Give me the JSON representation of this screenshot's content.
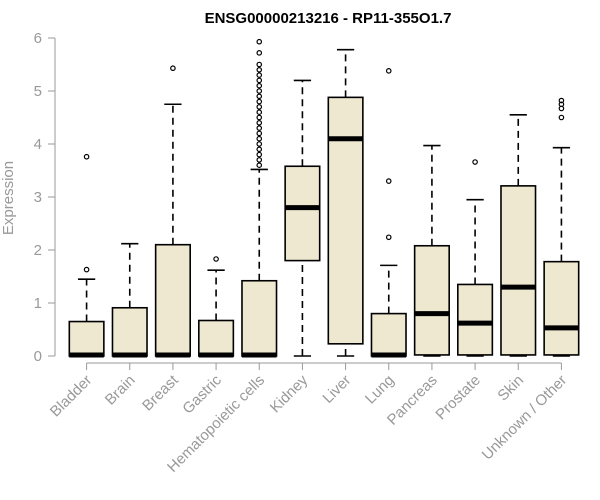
{
  "chart_data": {
    "type": "box",
    "title": "ENSG00000213216 - RP11-355O1.7",
    "xlabel": "",
    "ylabel": "Expression",
    "ylim": [
      0,
      6
    ],
    "yticks": [
      0,
      1,
      2,
      3,
      4,
      5,
      6
    ],
    "grid": false,
    "colors": {
      "box_fill": "#efe8d0",
      "box_stroke": "#000000",
      "axis": "#999999"
    },
    "categories": [
      "Bladder",
      "Brain",
      "Breast",
      "Gastric",
      "Hematopoietic cells",
      "Kidney",
      "Liver",
      "Lung",
      "Pancreas",
      "Prostate",
      "Skin",
      "Unknown / Other"
    ],
    "boxes": [
      {
        "q1": 0,
        "median": 0.02,
        "q3": 0.65,
        "whisker_low": 0,
        "whisker_high": 1.45,
        "outliers": [
          1.63,
          3.76
        ]
      },
      {
        "q1": 0,
        "median": 0.02,
        "q3": 0.91,
        "whisker_low": 0,
        "whisker_high": 2.12,
        "outliers": []
      },
      {
        "q1": 0,
        "median": 0.02,
        "q3": 2.1,
        "whisker_low": 0,
        "whisker_high": 4.75,
        "outliers": [
          5.43
        ]
      },
      {
        "q1": 0,
        "median": 0.02,
        "q3": 0.67,
        "whisker_low": 0,
        "whisker_high": 1.62,
        "outliers": [
          1.83
        ]
      },
      {
        "q1": 0,
        "median": 0.02,
        "q3": 1.42,
        "whisker_low": 0,
        "whisker_high": 3.52,
        "outliers": [
          3.6,
          3.7,
          3.8,
          3.9,
          4.0,
          4.1,
          4.2,
          4.3,
          4.4,
          4.5,
          4.6,
          4.7,
          4.8,
          4.9,
          5.0,
          5.1,
          5.2,
          5.3,
          5.4,
          5.5,
          5.72,
          5.93
        ]
      },
      {
        "q1": 1.8,
        "median": 2.8,
        "q3": 3.58,
        "whisker_low": 0,
        "whisker_high": 5.2,
        "outliers": []
      },
      {
        "q1": 0.23,
        "median": 4.1,
        "q3": 4.88,
        "whisker_low": 0,
        "whisker_high": 5.78,
        "outliers": []
      },
      {
        "q1": 0,
        "median": 0.02,
        "q3": 0.8,
        "whisker_low": 0,
        "whisker_high": 1.71,
        "outliers": [
          2.24,
          3.3,
          5.38
        ]
      },
      {
        "q1": 0.02,
        "median": 0.8,
        "q3": 2.08,
        "whisker_low": 0,
        "whisker_high": 3.97,
        "outliers": []
      },
      {
        "q1": 0.02,
        "median": 0.62,
        "q3": 1.35,
        "whisker_low": 0,
        "whisker_high": 2.95,
        "outliers": [
          3.66
        ]
      },
      {
        "q1": 0.02,
        "median": 1.3,
        "q3": 3.21,
        "whisker_low": 0,
        "whisker_high": 4.55,
        "outliers": []
      },
      {
        "q1": 0.02,
        "median": 0.53,
        "q3": 1.78,
        "whisker_low": 0,
        "whisker_high": 3.93,
        "outliers": [
          4.5,
          4.67,
          4.75,
          4.82
        ]
      }
    ]
  }
}
